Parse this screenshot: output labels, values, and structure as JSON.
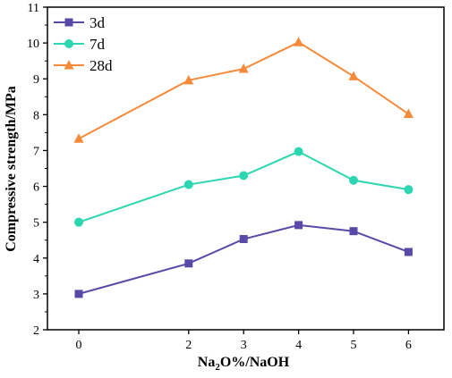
{
  "chart_data": {
    "type": "line",
    "xlabel": "Na2O%/NaOH",
    "xlabel_parts": {
      "prefix": "Na",
      "sub": "2",
      "suffix": "O%/NaOH"
    },
    "ylabel": "Compressive strength/MPa",
    "categories": [
      "0",
      "2",
      "3",
      "4",
      "5",
      "6"
    ],
    "yticks": [
      2,
      3,
      4,
      5,
      6,
      7,
      8,
      9,
      10,
      11
    ],
    "ylim": [
      2,
      11
    ],
    "grid": false,
    "legend_position": "top-left",
    "series": [
      {
        "name": "3d",
        "color": "#5a48a8",
        "marker": "square",
        "values": [
          3.0,
          3.85,
          4.53,
          4.92,
          4.75,
          4.17
        ]
      },
      {
        "name": "7d",
        "color": "#2bd6b0",
        "marker": "circle",
        "values": [
          5.0,
          6.05,
          6.3,
          6.97,
          6.17,
          5.91
        ]
      },
      {
        "name": "28d",
        "color": "#f58a3a",
        "marker": "triangle",
        "values": [
          7.33,
          8.96,
          9.28,
          10.02,
          9.07,
          8.02
        ]
      }
    ]
  }
}
